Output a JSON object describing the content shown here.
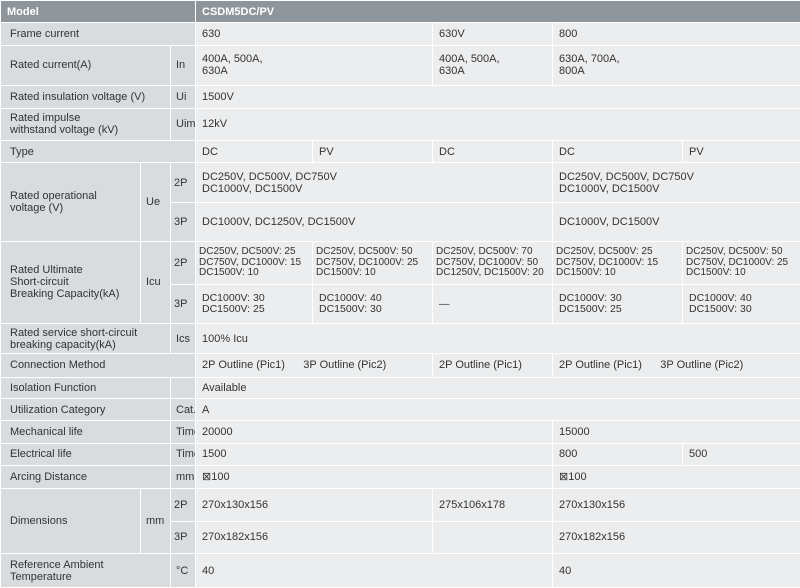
{
  "table": {
    "header": {
      "label": "Model",
      "model": "CSDM5DC/PV"
    },
    "frame_current": {
      "label": "Frame current",
      "v1": "630",
      "v2": "630V",
      "v3": "800"
    },
    "rated_current": {
      "label": "Rated current(A)",
      "symbol": "In",
      "v1": "400A, 500A,\n630A",
      "v2": "400A, 500A,\n630A",
      "v3": "630A, 700A,\n800A"
    },
    "insulation_voltage": {
      "label": "Rated insulation voltage (V)",
      "symbol": "Ui",
      "value": "1500V"
    },
    "impulse_voltage": {
      "label": "Rated impulse\nwithstand voltage (kV)",
      "symbol": "Uimp",
      "value": "12kV"
    },
    "type": {
      "label": "Type",
      "v1": "DC",
      "v2": "PV",
      "v3": "DC",
      "v4": "DC",
      "v5": "PV"
    },
    "operational_voltage": {
      "label": "Rated operational\nvoltage (V)",
      "symbol": "Ue",
      "pole_2p": "2P",
      "pole_3p": "3P",
      "v2p_a": "DC250V, DC500V, DC750V\nDC1000V, DC1500V",
      "v2p_b": "DC250V, DC500V, DC750V\nDC1000V, DC1500V",
      "v3p_a": "DC1000V, DC1250V, DC1500V",
      "v3p_b": "DC1000V, DC1500V"
    },
    "breaking_capacity": {
      "label": "Rated Ultimate\nShort-circuit\nBreaking Capacity(kA)",
      "symbol": "Icu",
      "pole_2p": "2P",
      "pole_3p": "3P",
      "r2p": [
        "DC250V, DC500V: 25\nDC750V, DC1000V: 15\nDC1500V: 10",
        "DC250V, DC500V: 50\nDC750V, DC1000V: 25\nDC1500V: 10",
        "DC250V, DC500V: 70\nDC750V, DC1000V: 50\nDC1250V, DC1500V: 20",
        "DC250V, DC500V: 25\nDC750V, DC1000V: 15\nDC1500V: 10",
        "DC250V, DC500V: 50\nDC750V, DC1000V: 25\nDC1500V: 10"
      ],
      "r3p": [
        "DC1000V: 30\nDC1500V: 25",
        "DC1000V: 40\nDC1500V: 30",
        "—",
        "DC1000V: 30\nDC1500V: 25",
        "DC1000V: 40\nDC1500V: 30"
      ]
    },
    "service_capacity": {
      "label": "Rated service short-circuit\nbreaking capacity(kA)",
      "symbol": "Ics",
      "value": "100% Icu"
    },
    "connection": {
      "label": "Connection Method",
      "v1": "2P Outline (Pic1)      3P Outline (Pic2)",
      "v2": "2P Outline (Pic1)",
      "v3": "2P Outline (Pic1)      3P Outline (Pic2)"
    },
    "isolation": {
      "label": "Isolation Function",
      "value": "Available"
    },
    "utilization": {
      "label": "Utilization Category",
      "symbol": "Cat.",
      "value": "A"
    },
    "mechanical_life": {
      "label": "Mechanical life",
      "symbol": "Times",
      "v1": "20000",
      "v2": "15000"
    },
    "electrical_life": {
      "label": "Electrical life",
      "symbol": "Times",
      "v1": "1500",
      "v2": "800",
      "v3": "500"
    },
    "arcing": {
      "label": "Arcing Distance",
      "symbol": "mm",
      "v1": "⊠100",
      "v2": "⊠100"
    },
    "dimensions": {
      "label": "Dimensions",
      "symbol": "mm",
      "pole_2p": "2P",
      "pole_3p": "3P",
      "d2p_a": "270x130x156",
      "d2p_b": "275x106x178",
      "d2p_c": "270x130x156",
      "d3p_a": "270x182x156",
      "d3p_c": "270x182x156"
    },
    "ambient": {
      "label": "Reference Ambient\nTemperature",
      "symbol": "°C",
      "v1": "40",
      "v2": "40"
    }
  },
  "colors": {
    "header_bg": "#8e969c",
    "label_bg": "#d8dcdf",
    "value_bg": "#ebedef",
    "text": "#333333"
  }
}
